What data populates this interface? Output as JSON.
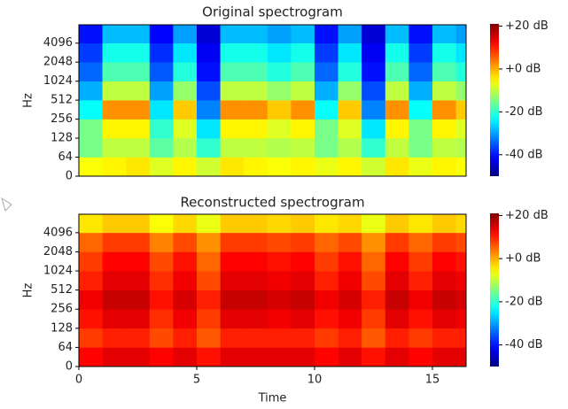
{
  "chart_data": [
    {
      "type": "heatmap",
      "title": "Original spectrogram",
      "ylabel": "Hz",
      "colormap": "jet",
      "xlim": [
        0,
        16.43
      ],
      "ylim": [
        0,
        8000
      ],
      "yscale": "symlog",
      "linthresh": 64,
      "yticks": [
        0,
        64,
        128,
        256,
        512,
        1024,
        2048,
        4096
      ],
      "xbins": [
        0,
        1,
        2,
        3,
        4,
        5,
        6,
        7,
        8,
        9,
        10,
        11,
        12,
        13,
        14,
        15,
        16,
        16.43
      ],
      "ybins": [
        0,
        64,
        128,
        256,
        512,
        1024,
        2048,
        4096,
        8000
      ],
      "z": [
        [
          -6,
          -5,
          -4,
          -8,
          -5,
          -9,
          -4,
          -5,
          -6,
          -5,
          -7,
          -5,
          -9,
          -4,
          -7,
          -5,
          -6
        ],
        [
          -15,
          -10,
          -10,
          -17,
          -11,
          -20,
          -10,
          -10,
          -11,
          -10,
          -15,
          -11,
          -20,
          -10,
          -15,
          -10,
          -11
        ],
        [
          -15,
          -5,
          -5,
          -20,
          -8,
          -25,
          -5,
          -5,
          -8,
          -5,
          -15,
          -8,
          -25,
          -5,
          -15,
          -5,
          -8
        ],
        [
          -23,
          2,
          2,
          -25,
          -2,
          -32,
          2,
          2,
          -2,
          2,
          -23,
          -2,
          -32,
          2,
          -23,
          2,
          -2
        ],
        [
          -29,
          -10,
          -10,
          -30,
          -13,
          -36,
          -10,
          -10,
          -13,
          -10,
          -29,
          -13,
          -36,
          -10,
          -29,
          -10,
          -13
        ],
        [
          -34,
          -18,
          -18,
          -35,
          -21,
          -40,
          -18,
          -18,
          -21,
          -18,
          -34,
          -21,
          -40,
          -18,
          -34,
          -18,
          -21
        ],
        [
          -37,
          -22,
          -22,
          -38,
          -25,
          -42,
          -22,
          -22,
          -25,
          -22,
          -37,
          -25,
          -42,
          -22,
          -37,
          -22,
          -25
        ],
        [
          -40,
          -28,
          -28,
          -41,
          -30,
          -44,
          -28,
          -28,
          -30,
          -28,
          -40,
          -30,
          -44,
          -28,
          -40,
          -28,
          -30
        ]
      ],
      "zlim": [
        -50,
        21
      ],
      "zticks": [
        {
          "value": 20,
          "label": "+20 dB"
        },
        {
          "value": 0,
          "label": "+0 dB"
        },
        {
          "value": -20,
          "label": "-20 dB"
        },
        {
          "value": -40,
          "label": "-40 dB"
        }
      ]
    },
    {
      "type": "heatmap",
      "title": "Reconstructed spectrogram",
      "xlabel": "Time",
      "ylabel": "Hz",
      "colormap": "jet",
      "xlim": [
        0,
        16.43
      ],
      "ylim": [
        0,
        8000
      ],
      "yscale": "symlog",
      "linthresh": 64,
      "xticks": [
        0,
        5,
        10,
        15
      ],
      "yticks": [
        0,
        64,
        128,
        256,
        512,
        1024,
        2048,
        4096
      ],
      "xbins": [
        0,
        1,
        2,
        3,
        4,
        5,
        6,
        7,
        8,
        9,
        10,
        11,
        12,
        13,
        14,
        15,
        16,
        16.43
      ],
      "ybins": [
        0,
        64,
        128,
        256,
        512,
        1024,
        2048,
        4096,
        8000
      ],
      "z": [
        [
          12,
          14,
          14,
          12,
          14,
          11,
          14,
          14,
          14,
          14,
          12,
          14,
          11,
          14,
          12,
          14,
          14
        ],
        [
          8,
          10,
          10,
          7,
          10,
          6,
          10,
          10,
          10,
          10,
          8,
          10,
          6,
          10,
          8,
          10,
          10
        ],
        [
          11,
          14,
          14,
          9,
          13,
          8,
          14,
          14,
          13,
          14,
          11,
          13,
          8,
          14,
          11,
          14,
          13
        ],
        [
          13,
          16,
          16,
          11,
          15,
          10,
          16,
          16,
          15,
          16,
          13,
          15,
          10,
          16,
          13,
          16,
          15
        ],
        [
          10,
          14,
          14,
          9,
          13,
          7,
          14,
          14,
          13,
          14,
          10,
          13,
          7,
          14,
          10,
          14,
          13
        ],
        [
          8,
          12,
          12,
          7,
          11,
          5,
          12,
          12,
          11,
          12,
          8,
          11,
          5,
          12,
          8,
          12,
          11
        ],
        [
          5,
          8,
          8,
          3,
          7,
          2,
          8,
          8,
          7,
          8,
          5,
          7,
          2,
          8,
          5,
          8,
          7
        ],
        [
          -4,
          -2,
          -2,
          -6,
          -3,
          -7,
          -2,
          -2,
          -3,
          -2,
          -4,
          -3,
          -7,
          -2,
          -4,
          -2,
          -3
        ]
      ],
      "zlim": [
        -50,
        21
      ],
      "zticks": [
        {
          "value": 20,
          "label": "+20 dB"
        },
        {
          "value": 0,
          "label": "+0 dB"
        },
        {
          "value": -20,
          "label": "-20 dB"
        },
        {
          "value": -40,
          "label": "-40 dB"
        }
      ]
    }
  ]
}
